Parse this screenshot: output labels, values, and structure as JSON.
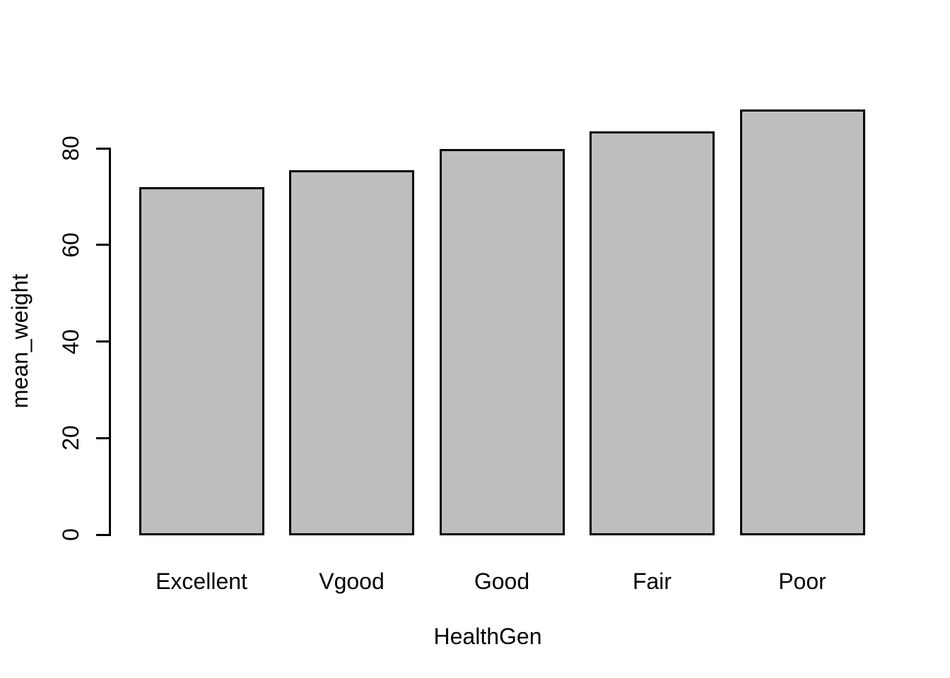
{
  "figure": {
    "background": "#ffffff",
    "text_color": "#000000"
  },
  "chart_data": {
    "type": "bar",
    "title": "",
    "xlabel": "HealthGen",
    "ylabel": "mean_weight",
    "categories": [
      "Excellent",
      "Vgood",
      "Good",
      "Fair",
      "Poor"
    ],
    "values": [
      71.9,
      75.4,
      79.9,
      83.5,
      88.0
    ],
    "y_ticks": [
      0,
      20,
      40,
      60,
      80
    ],
    "ylim": [
      0,
      88
    ],
    "bar_fill": "#bebebe",
    "bar_border": "#000000",
    "grid": false,
    "legend": "none",
    "y_tick_label_rotation_deg": 90,
    "axis_color": "#000000"
  }
}
